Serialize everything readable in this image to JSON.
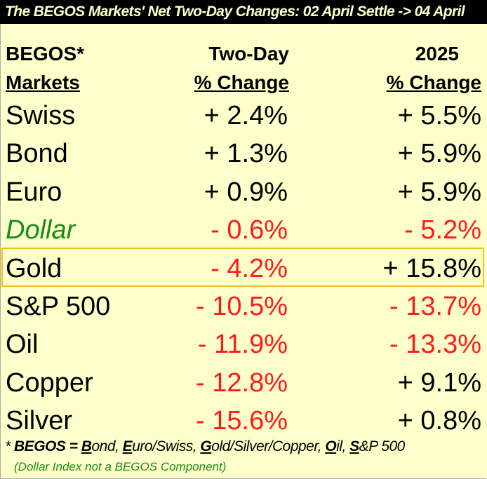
{
  "title": "The BEGOS Markets' Net Two-Day Changes:  02 April Settle -> 04 April",
  "headers": {
    "col1_line1": "BEGOS*",
    "col1_line2": "Markets",
    "col2_line1": "Two-Day",
    "col2_line2": "% Change",
    "col3_line1": "2025",
    "col3_line2": "% Change"
  },
  "rows": [
    {
      "market": "Swiss",
      "two_day": "+ 2.4%",
      "ytd": "+ 5.5%"
    },
    {
      "market": "Bond",
      "two_day": "+ 1.3%",
      "ytd": "+ 5.9%"
    },
    {
      "market": "Euro",
      "two_day": "+ 0.9%",
      "ytd": "+ 5.9%"
    },
    {
      "market": "Dollar",
      "two_day": "- 0.6%",
      "ytd": "- 5.2%"
    },
    {
      "market": "Gold",
      "two_day": "- 4.2%",
      "ytd": "+ 15.8%"
    },
    {
      "market": "S&P 500",
      "two_day": "- 10.5%",
      "ytd": "- 13.7%"
    },
    {
      "market": "Oil",
      "two_day": "- 11.9%",
      "ytd": "- 13.3%"
    },
    {
      "market": "Copper",
      "two_day": "- 12.8%",
      "ytd": "+ 9.1%"
    },
    {
      "market": "Silver",
      "two_day": "- 15.6%",
      "ytd": "+ 0.8%"
    }
  ],
  "footnote": {
    "prefix": "* ",
    "begos": "BEGOS",
    "eq": " = ",
    "b": "B",
    "b_rest": "ond, ",
    "e": "E",
    "e_rest": "uro/Swiss, ",
    "g": "G",
    "g_rest": "old/Silver/Copper, ",
    "o": "O",
    "o_rest": "il, ",
    "s": "S",
    "s_rest": "&P 500",
    "note": "(Dollar Index not a BEGOS Component)"
  },
  "colors": {
    "positive": "#000000",
    "negative": "#ff1a1a",
    "dollar": "#1a8a1a",
    "highlight": "#F0C020",
    "background": "#FFFFCC"
  }
}
